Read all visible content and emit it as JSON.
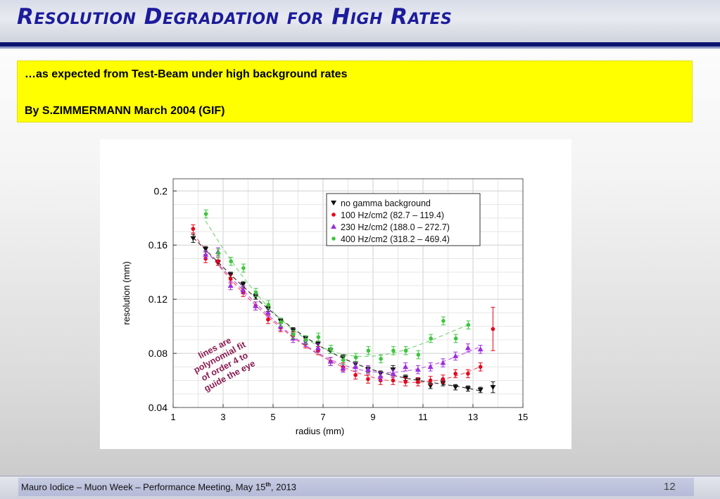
{
  "slide": {
    "title": "Resolution Degradation for High Rates",
    "note_line1": "…as expected from Test-Beam under high background rates",
    "note_line2": "By S.ZIMMERMANN March 2004 (GIF)",
    "footer_prefix": "Mauro Iodice – Muon Week – Performance Meeting, May 15",
    "footer_sup": "th",
    "footer_suffix": ", 2013",
    "page_number": "12"
  },
  "colors": {
    "title": "#1c1c9c",
    "title_rule": "#0b1470",
    "highlight": "#ffff00",
    "series": [
      "#111111",
      "#e8001a",
      "#9a2ee0",
      "#3cc63c"
    ]
  },
  "chart_data": {
    "type": "scatter",
    "xlabel": "radius (mm)",
    "ylabel": "resolution (mm)",
    "xlim": [
      1,
      15
    ],
    "ylim": [
      0.04,
      0.21
    ],
    "x_ticks": [
      "1",
      "3",
      "5",
      "7",
      "9",
      "11",
      "13",
      "15"
    ],
    "y_ticks": [
      "0.04",
      "0.08",
      "0.12",
      "0.16",
      "0.2"
    ],
    "grid": true,
    "legend_position": "top-right",
    "annotation": [
      "lines are",
      "polynomial fit",
      "of order 4 to",
      "guide the eye"
    ],
    "series": [
      {
        "name": "no gamma background",
        "marker": "triangle-down",
        "x": [
          1.8,
          2.3,
          2.8,
          3.3,
          3.8,
          4.3,
          4.8,
          5.3,
          5.8,
          6.3,
          6.8,
          7.3,
          7.8,
          8.3,
          8.8,
          9.3,
          9.8,
          10.3,
          10.8,
          11.3,
          11.8,
          12.3,
          12.8,
          13.3,
          13.8
        ],
        "y": [
          0.165,
          0.157,
          0.147,
          0.138,
          0.131,
          0.122,
          0.113,
          0.104,
          0.097,
          0.091,
          0.087,
          0.082,
          0.077,
          0.072,
          0.068,
          0.065,
          0.068,
          0.062,
          0.06,
          0.056,
          0.058,
          0.055,
          0.054,
          0.053,
          0.055
        ],
        "err": [
          0.003,
          0.002,
          0.002,
          0.002,
          0.002,
          0.002,
          0.002,
          0.002,
          0.002,
          0.002,
          0.002,
          0.002,
          0.002,
          0.002,
          0.002,
          0.002,
          0.003,
          0.002,
          0.002,
          0.002,
          0.002,
          0.002,
          0.002,
          0.002,
          0.004
        ]
      },
      {
        "name": "100 Hz/cm2 (82.7 – 119.4)",
        "marker": "circle",
        "x": [
          1.8,
          2.3,
          2.8,
          3.3,
          3.8,
          4.3,
          4.8,
          5.3,
          5.8,
          6.3,
          6.8,
          7.3,
          7.8,
          8.3,
          8.8,
          9.3,
          9.8,
          10.3,
          10.8,
          11.3,
          11.8,
          12.3,
          12.8,
          13.3,
          13.8
        ],
        "y": [
          0.172,
          0.15,
          0.148,
          0.135,
          0.125,
          0.115,
          0.105,
          0.099,
          0.093,
          0.087,
          0.082,
          0.074,
          0.07,
          0.064,
          0.061,
          0.06,
          0.06,
          0.059,
          0.059,
          0.06,
          0.061,
          0.065,
          0.065,
          0.07,
          0.098
        ]
      },
      {
        "name": "230 Hz/cm2 (188.0 – 272.7)",
        "marker": "triangle-up",
        "x": [
          2.3,
          2.8,
          3.3,
          3.8,
          4.3,
          4.8,
          5.3,
          5.8,
          6.3,
          6.8,
          7.3,
          7.8,
          8.3,
          8.8,
          9.3,
          9.8,
          10.3,
          10.8,
          11.3,
          11.8,
          12.3,
          12.8,
          13.3
        ],
        "y": [
          0.153,
          0.155,
          0.13,
          0.127,
          0.115,
          0.11,
          0.1,
          0.091,
          0.088,
          0.084,
          0.074,
          0.069,
          0.07,
          0.068,
          0.063,
          0.065,
          0.07,
          0.068,
          0.07,
          0.073,
          0.078,
          0.084,
          0.083
        ]
      },
      {
        "name": "400 Hz/cm2 (318.2 – 469.4)",
        "marker": "circle",
        "x": [
          2.3,
          2.8,
          3.3,
          3.8,
          4.3,
          4.8,
          5.3,
          5.8,
          6.3,
          6.8,
          7.3,
          7.8,
          8.3,
          8.8,
          9.3,
          9.8,
          10.3,
          10.8,
          11.3,
          11.8,
          12.3,
          12.8
        ],
        "y": [
          0.183,
          0.154,
          0.148,
          0.143,
          0.125,
          0.116,
          0.103,
          0.094,
          0.09,
          0.092,
          0.083,
          0.075,
          0.077,
          0.082,
          0.076,
          0.082,
          0.082,
          0.079,
          0.091,
          0.104,
          0.091,
          0.101
        ]
      }
    ]
  }
}
